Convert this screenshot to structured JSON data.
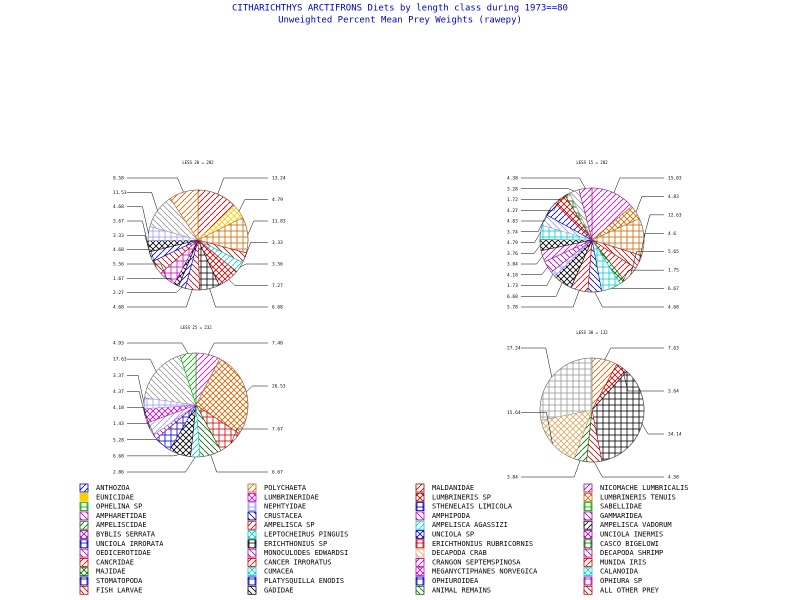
{
  "title": "CITHARICHTHYS ARCTIFRONS Diets by length class during 1973==80",
  "subtitle": "Unweighted Percent Mean Prey Weights (rawepy)",
  "chart_data": [
    {
      "type": "pie",
      "title": "LESS 20 = 202",
      "values": [
        13.24,
        4.79,
        11.83,
        3.33,
        3.56,
        7.27,
        6.68,
        4.68,
        2.27,
        1.67,
        5.56,
        4.68,
        3.33,
        3.67,
        4.68,
        11.53,
        9.58
      ],
      "colors": [
        "#aa0000",
        "#ffcc00",
        "#cc6600",
        "#cc0000",
        "#00cccc",
        "#cc0000",
        "#000000",
        "#cc0000",
        "#0000cc",
        "#000000",
        "#cc00cc",
        "#cc0000",
        "#0000aa",
        "#000000",
        "#9999ff",
        "#999999",
        "#cc6600"
      ]
    },
    {
      "type": "pie",
      "title": "LESS 15 = 202",
      "values": [
        15.03,
        4.83,
        12.63,
        4.6,
        5.65,
        1.75,
        6.67,
        4.68,
        5.78,
        6.68,
        1.73,
        4.18,
        3.84,
        3.76,
        4.79,
        3.74,
        4.83,
        4.27,
        1.72,
        3.28,
        4.38
      ],
      "colors": [
        "#cc00cc",
        "#cc6600",
        "#cc6600",
        "#cc0000",
        "#cc0000",
        "#006600",
        "#00cccc",
        "#0000cc",
        "#cc0000",
        "#000000",
        "#9999ff",
        "#aa00aa",
        "#cc00cc",
        "#000000",
        "#00cccc",
        "#9999ff",
        "#0000aa",
        "#cc0000",
        "#006600",
        "#999999",
        "#aa00aa"
      ]
    },
    {
      "type": "pie",
      "title": "LESS 25 = 232",
      "values": [
        7.48,
        26.53,
        7.67,
        6.67,
        2.86,
        6.68,
        5.28,
        1.43,
        4.18,
        4.37,
        3.37,
        17.63,
        4.93
      ],
      "colors": [
        "#cc00cc",
        "#cc6600",
        "#cc0000",
        "#006600",
        "#00cccc",
        "#000000",
        "#0000cc",
        "#aa00aa",
        "#9999ff",
        "#cc00cc",
        "#9999ff",
        "#999999",
        "#00aa00"
      ]
    },
    {
      "type": "pie",
      "title": "LESS 30 = 132",
      "values": [
        7.63,
        3.64,
        34.14,
        4.58,
        3.84,
        15.64,
        27.24
      ],
      "colors": [
        "#cc6600",
        "#cc0000",
        "#000000",
        "#cc0000",
        "#006600",
        "#ddaa66",
        "#999999"
      ]
    }
  ],
  "legend": [
    {
      "name": "ANTHOZOA",
      "color": "#0000cc"
    },
    {
      "name": "EUNICIDAE",
      "color": "#ffcc00"
    },
    {
      "name": "OPHELINA SP",
      "color": "#00aa00"
    },
    {
      "name": "AMPHARETIDAE",
      "color": "#cc00cc"
    },
    {
      "name": "AMPELISCIDAE",
      "color": "#006600"
    },
    {
      "name": "BYBLIS SERRATA",
      "color": "#aa00aa"
    },
    {
      "name": "UNCIOLA IRRORATA",
      "color": "#0000aa"
    },
    {
      "name": "OEDICEROTIDAE",
      "color": "#aa00aa"
    },
    {
      "name": "CANCRIDAE",
      "color": "#cc0000"
    },
    {
      "name": "MAJIDAE",
      "color": "#006600"
    },
    {
      "name": "STOMATOPODA",
      "color": "#0000aa"
    },
    {
      "name": "FISH LARVAE",
      "color": "#cc0000"
    },
    {
      "name": "POLYCHAETA",
      "color": "#cc6600"
    },
    {
      "name": "LUMBRINERIDAE",
      "color": "#cc00cc"
    },
    {
      "name": "NEPHTYIDAE",
      "color": "#9999ff"
    },
    {
      "name": "CRUSTACEA",
      "color": "#0000aa"
    },
    {
      "name": "AMPELISCA SP",
      "color": "#cc0000"
    },
    {
      "name": "LEPTOCHEIRUS PINGUIS",
      "color": "#00cccc"
    },
    {
      "name": "ERICHTHONIUS SP",
      "color": "#000000"
    },
    {
      "name": "MONOCULODES EDWARDSI",
      "color": "#aa00aa"
    },
    {
      "name": "CANCER IRRORATUS",
      "color": "#cc0000"
    },
    {
      "name": "CUMACEA",
      "color": "#00cccc"
    },
    {
      "name": "PLATYSQUILLA ENODIS",
      "color": "#0000cc"
    },
    {
      "name": "GADIDAE",
      "color": "#000000"
    },
    {
      "name": "MALDANIDAE",
      "color": "#aa0000"
    },
    {
      "name": "LUMBRINERIS SP",
      "color": "#aa0000"
    },
    {
      "name": "STHENELAIS LIMICOLA",
      "color": "#0000aa"
    },
    {
      "name": "AMPHIPODA",
      "color": "#cc00cc"
    },
    {
      "name": "AMPELISCA AGASSIZI",
      "color": "#00cccc"
    },
    {
      "name": "UNCIOLA SP",
      "color": "#0000cc"
    },
    {
      "name": "ERICHTHONIUS RUBRICORNIS",
      "color": "#cc0000"
    },
    {
      "name": "DECAPODA CRAB",
      "color": "#ddaa66"
    },
    {
      "name": "CRANGON SEPTEMSPINOSA",
      "color": "#aa00aa"
    },
    {
      "name": "MEGANYCTIPHANES NORVEGICA",
      "color": "#cc00cc"
    },
    {
      "name": "OPHIUROIDEA",
      "color": "#0000cc"
    },
    {
      "name": "ANIMAL REMAINS",
      "color": "#006600"
    },
    {
      "name": "NICOMACHE LUMBRICALIS",
      "color": "#aa00aa"
    },
    {
      "name": "LUMBRINERIS TENUIS",
      "color": "#cc6600"
    },
    {
      "name": "SABELLIDAE",
      "color": "#00aa00"
    },
    {
      "name": "GAMMARIDEA",
      "color": "#aa00aa"
    },
    {
      "name": "AMPELISCA VADORUM",
      "color": "#000000"
    },
    {
      "name": "UNCIOLA INERMIS",
      "color": "#aa00aa"
    },
    {
      "name": "CASCO BIGELOWI",
      "color": "#006600"
    },
    {
      "name": "DECAPODA SHRIMP",
      "color": "#aa00aa"
    },
    {
      "name": "MUNIDA IRIS",
      "color": "#cc0000"
    },
    {
      "name": "CALANOIDA",
      "color": "#00cccc"
    },
    {
      "name": "OPHIURA SP",
      "color": "#aa00aa"
    },
    {
      "name": "ALL OTHER PREY",
      "color": "#cc0000"
    }
  ]
}
